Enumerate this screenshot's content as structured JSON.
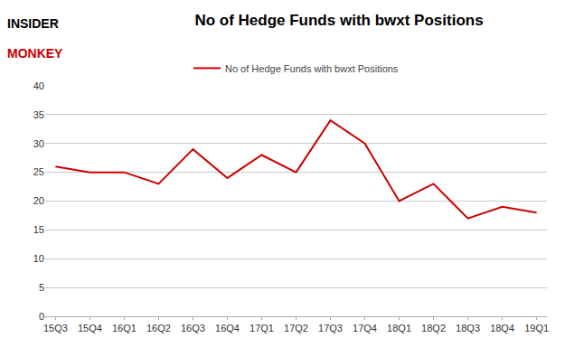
{
  "chart_data": {
    "type": "line",
    "title": "No of Hedge Funds with bwxt Positions",
    "categories": [
      "15Q3",
      "15Q4",
      "16Q1",
      "16Q2",
      "16Q3",
      "16Q4",
      "17Q1",
      "17Q2",
      "17Q3",
      "17Q4",
      "18Q1",
      "18Q2",
      "18Q3",
      "18Q4",
      "19Q1"
    ],
    "series": [
      {
        "name": "No of Hedge Funds with bwxt Positions",
        "color": "#cc0000",
        "values": [
          26,
          25,
          25,
          23,
          29,
          24,
          28,
          25,
          34,
          30,
          20,
          23,
          17,
          19,
          18
        ]
      }
    ],
    "ylim": [
      0,
      40
    ],
    "yticks": [
      0,
      5,
      10,
      15,
      20,
      25,
      30,
      35,
      40
    ],
    "grid": true,
    "legend": "top",
    "annotations": [
      "INSIDER",
      "MONKEY"
    ]
  }
}
